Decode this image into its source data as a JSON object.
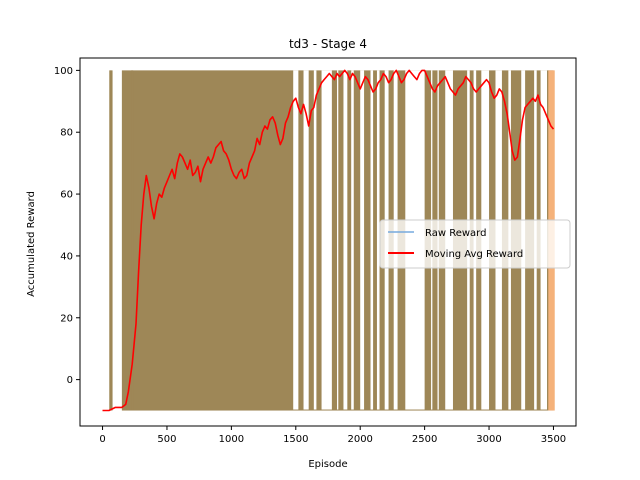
{
  "chart_data": {
    "type": "line",
    "title": "td3 - Stage 4",
    "xlabel": "Episode",
    "ylabel": "Accumulated Reward",
    "xlim": [
      -175,
      3675
    ],
    "ylim": [
      -15,
      104
    ],
    "xticks": [
      0,
      500,
      1000,
      1500,
      2000,
      2500,
      3000,
      3500
    ],
    "yticks": [
      0,
      20,
      40,
      60,
      80,
      100
    ],
    "grid": false,
    "legend_position": "center-right",
    "series": [
      {
        "name": "Raw Reward",
        "color": "#77aadd",
        "overlap_color": "#9e8757",
        "tail_color": "#f5b27a",
        "values_range": [
          -10,
          100
        ],
        "episodes": 3500,
        "dense_range": [
          150,
          3500
        ],
        "sparse_spikes": [
          60,
          70,
          230
        ],
        "gap_ranges": [
          [
            1480,
            1520
          ],
          [
            1560,
            1600
          ],
          [
            1640,
            1660
          ],
          [
            1700,
            1780
          ],
          [
            1820,
            1830
          ],
          [
            1870,
            1900
          ],
          [
            1930,
            1950
          ],
          [
            2000,
            2030
          ],
          [
            2080,
            2100
          ],
          [
            2130,
            2150
          ],
          [
            2190,
            2220
          ],
          [
            2260,
            2290
          ],
          [
            2350,
            2500
          ],
          [
            2550,
            2560
          ],
          [
            2600,
            2610
          ],
          [
            2660,
            2720
          ],
          [
            2830,
            2850
          ],
          [
            2880,
            2900
          ],
          [
            2940,
            3000
          ],
          [
            3050,
            3100
          ],
          [
            3150,
            3170
          ],
          [
            3250,
            3280
          ],
          [
            3350,
            3370
          ],
          [
            3400,
            3450
          ]
        ]
      },
      {
        "name": "Moving Avg Reward",
        "color": "#ff0000",
        "x": [
          0,
          50,
          100,
          150,
          180,
          200,
          230,
          260,
          280,
          300,
          320,
          340,
          360,
          380,
          400,
          420,
          440,
          460,
          480,
          500,
          520,
          540,
          560,
          580,
          600,
          620,
          640,
          660,
          680,
          700,
          720,
          740,
          760,
          780,
          800,
          820,
          840,
          860,
          880,
          900,
          920,
          940,
          960,
          980,
          1000,
          1020,
          1040,
          1060,
          1080,
          1100,
          1120,
          1140,
          1160,
          1180,
          1200,
          1220,
          1240,
          1260,
          1280,
          1300,
          1320,
          1340,
          1360,
          1380,
          1400,
          1420,
          1440,
          1460,
          1480,
          1500,
          1520,
          1540,
          1560,
          1580,
          1600,
          1620,
          1640,
          1660,
          1680,
          1700,
          1720,
          1740,
          1760,
          1780,
          1800,
          1820,
          1840,
          1860,
          1880,
          1900,
          1920,
          1940,
          1960,
          1980,
          2000,
          2020,
          2040,
          2060,
          2080,
          2100,
          2120,
          2140,
          2160,
          2180,
          2200,
          2220,
          2240,
          2260,
          2280,
          2300,
          2320,
          2340,
          2360,
          2380,
          2400,
          2420,
          2440,
          2460,
          2480,
          2500,
          2520,
          2540,
          2560,
          2580,
          2600,
          2620,
          2640,
          2660,
          2680,
          2700,
          2720,
          2740,
          2760,
          2780,
          2800,
          2820,
          2840,
          2860,
          2880,
          2900,
          2920,
          2940,
          2960,
          2980,
          3000,
          3020,
          3040,
          3060,
          3080,
          3100,
          3120,
          3140,
          3160,
          3180,
          3200,
          3220,
          3240,
          3260,
          3280,
          3300,
          3320,
          3340,
          3360,
          3380,
          3400,
          3420,
          3440,
          3460,
          3480,
          3500
        ],
        "values": [
          -10,
          -10,
          -9,
          -9,
          -8,
          -4,
          5,
          18,
          35,
          50,
          60,
          66,
          62,
          56,
          52,
          57,
          60,
          59,
          62,
          64,
          66,
          68,
          65,
          70,
          73,
          72,
          70,
          68,
          71,
          66,
          67,
          69,
          64,
          68,
          70,
          72,
          70,
          72,
          75,
          76,
          77,
          74,
          73,
          71,
          68,
          66,
          65,
          67,
          68,
          65,
          66,
          70,
          72,
          74,
          78,
          76,
          80,
          82,
          81,
          84,
          85,
          83,
          79,
          76,
          78,
          83,
          85,
          88,
          90,
          91,
          88,
          86,
          89,
          86,
          82,
          87,
          88,
          92,
          94,
          96,
          97,
          98,
          99,
          98,
          97,
          99,
          98,
          99,
          100,
          99,
          97,
          99,
          98,
          96,
          94,
          96,
          98,
          97,
          95,
          93,
          94,
          96,
          97,
          99,
          98,
          96,
          97,
          99,
          100,
          98,
          96,
          97,
          99,
          100,
          99,
          98,
          97,
          99,
          100,
          100,
          98,
          96,
          94,
          93,
          95,
          96,
          97,
          98,
          96,
          94,
          93,
          92,
          94,
          95,
          96,
          98,
          97,
          96,
          94,
          93,
          94,
          95,
          96,
          97,
          96,
          93,
          91,
          92,
          94,
          93,
          90,
          86,
          80,
          74,
          71,
          72,
          78,
          84,
          88,
          89,
          90,
          91,
          90,
          92,
          89,
          88,
          86,
          84,
          82,
          81
        ]
      }
    ]
  }
}
